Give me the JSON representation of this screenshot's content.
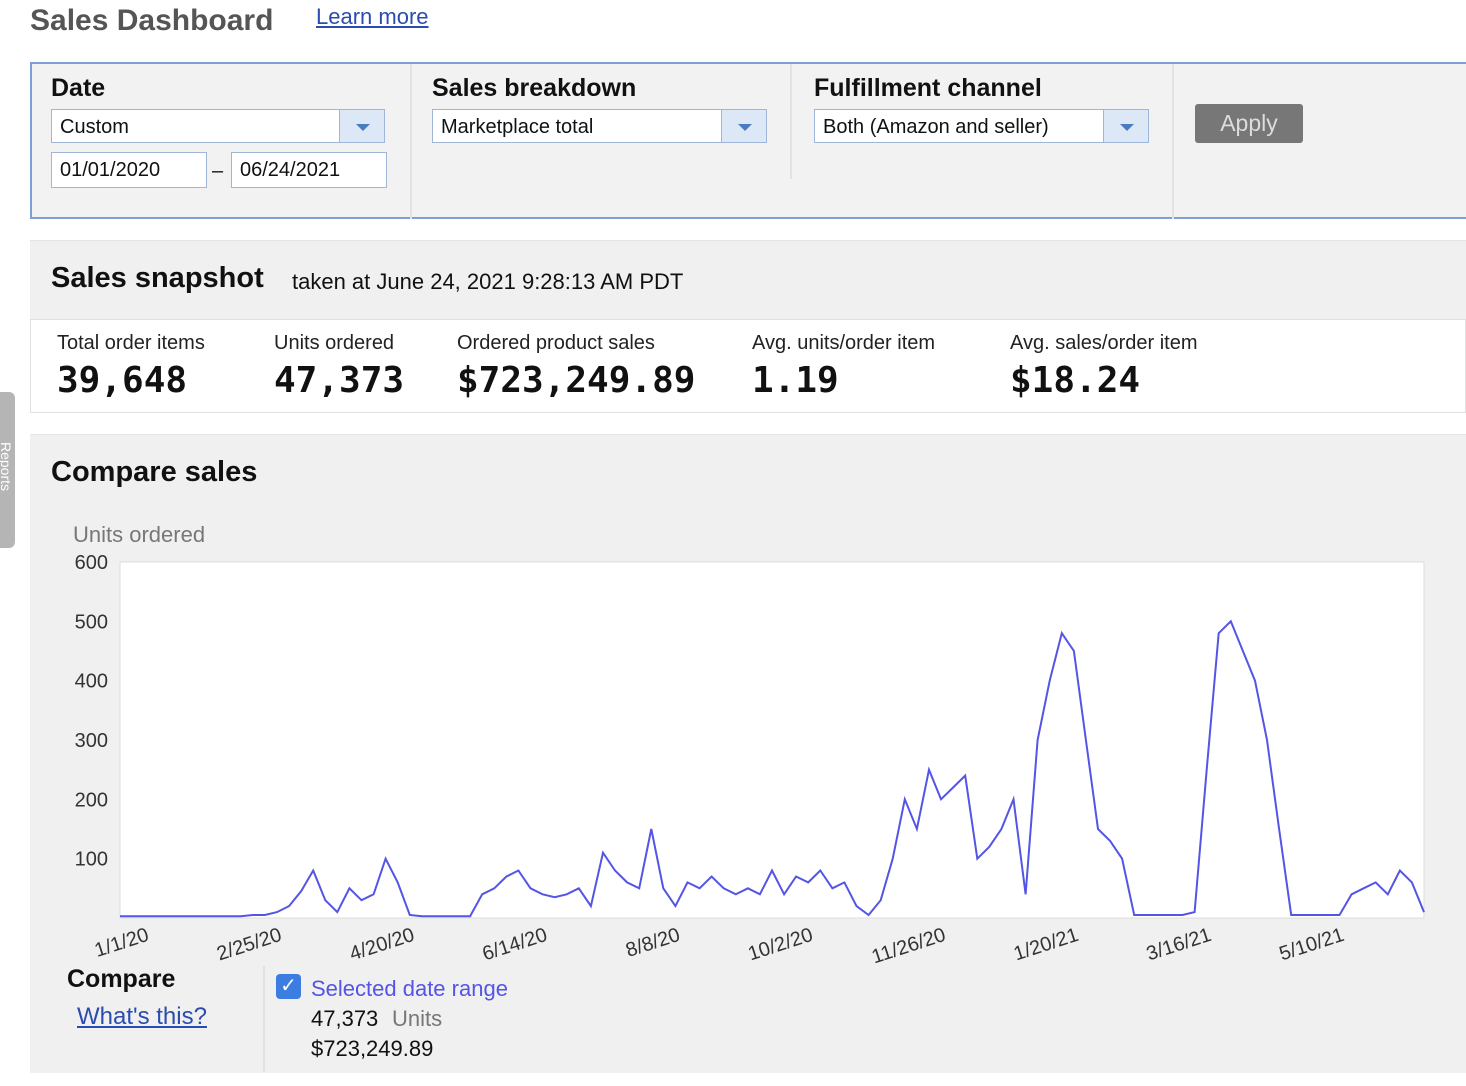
{
  "header": {
    "title": "Sales Dashboard",
    "link": "Learn more"
  },
  "side_tab": "Reports",
  "filters": {
    "date": {
      "label": "Date",
      "value": "Custom",
      "start": "01/01/2020",
      "separator": "–",
      "end": "06/24/2021"
    },
    "breakdown": {
      "label": "Sales breakdown",
      "value": "Marketplace total"
    },
    "fulfillment": {
      "label": "Fulfillment channel",
      "value": "Both (Amazon and seller)"
    },
    "apply": "Apply"
  },
  "snapshot": {
    "title": "Sales snapshot",
    "subtitle": "taken at June 24, 2021 9:28:13 AM PDT",
    "metrics": [
      {
        "label": "Total order items",
        "value": "39,648"
      },
      {
        "label": "Units ordered",
        "value": "47,373"
      },
      {
        "label": "Ordered product sales",
        "value": "$723,249.89"
      },
      {
        "label": "Avg. units/order item",
        "value": "1.19"
      },
      {
        "label": "Avg. sales/order item",
        "value": "$18.24"
      }
    ]
  },
  "compare": {
    "title": "Compare sales",
    "label": "Compare",
    "help": "What's this?",
    "units": "47,373",
    "units_label": "Units",
    "sales": "$723,249.89"
  },
  "chart_data": {
    "type": "line",
    "y_label": "Units ordered",
    "categories": [
      "1/1/20",
      null,
      null,
      null,
      null,
      null,
      null,
      null,
      null,
      null,
      null,
      "2/25/20",
      null,
      null,
      null,
      null,
      null,
      null,
      null,
      null,
      null,
      null,
      "4/20/20",
      null,
      null,
      null,
      null,
      null,
      null,
      null,
      null,
      null,
      null,
      "6/14/20",
      null,
      null,
      null,
      null,
      null,
      null,
      null,
      null,
      null,
      null,
      "8/8/20",
      null,
      null,
      null,
      null,
      null,
      null,
      null,
      null,
      null,
      null,
      "10/2/20",
      null,
      null,
      null,
      null,
      null,
      null,
      null,
      null,
      null,
      null,
      "11/26/20",
      null,
      null,
      null,
      null,
      null,
      null,
      null,
      null,
      null,
      null,
      "1/20/21",
      null,
      null,
      null,
      null,
      null,
      null,
      null,
      null,
      null,
      null,
      "3/16/21",
      null,
      null,
      null,
      null,
      null,
      null,
      null,
      null,
      null,
      null,
      "5/10/21",
      null,
      null,
      null,
      null,
      null,
      null,
      null,
      null,
      null
    ],
    "series": [
      {
        "name": "Selected date range",
        "color": "#5454e6",
        "values": [
          3,
          3,
          3,
          3,
          3,
          3,
          3,
          3,
          3,
          3,
          3,
          5,
          5,
          10,
          20,
          45,
          80,
          30,
          10,
          50,
          30,
          40,
          100,
          60,
          5,
          3,
          3,
          3,
          3,
          3,
          40,
          50,
          70,
          80,
          50,
          40,
          35,
          40,
          50,
          20,
          110,
          80,
          60,
          50,
          150,
          50,
          20,
          60,
          50,
          70,
          50,
          40,
          50,
          40,
          80,
          40,
          70,
          60,
          80,
          50,
          60,
          20,
          5,
          30,
          100,
          200,
          150,
          250,
          200,
          220,
          240,
          100,
          120,
          150,
          200,
          40,
          300,
          400,
          480,
          450,
          300,
          150,
          130,
          100,
          5,
          5,
          5,
          5,
          5,
          10,
          250,
          480,
          500,
          450,
          400,
          300,
          150,
          5,
          5,
          5,
          5,
          5,
          40,
          50,
          60,
          40,
          80,
          60,
          10
        ]
      }
    ],
    "ylim": [
      0,
      600
    ],
    "yticks": [
      100,
      200,
      300,
      400,
      500,
      600
    ],
    "grid": false
  }
}
